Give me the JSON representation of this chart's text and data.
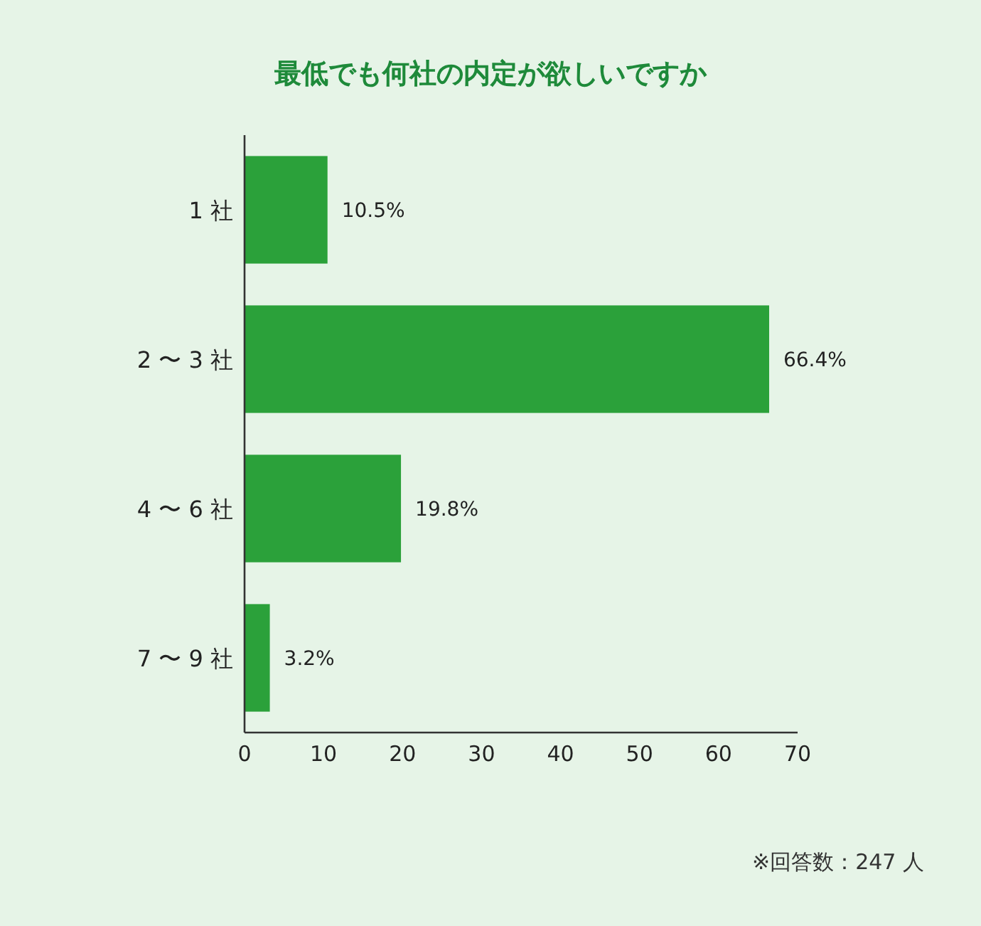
{
  "chart_data": {
    "type": "bar",
    "orientation": "horizontal",
    "title": "最低でも何社の内定が欲しいですか",
    "categories": [
      "1 社",
      "2 〜 3 社",
      "4 〜 6 社",
      "7 〜 9 社"
    ],
    "values": [
      10.5,
      66.4,
      19.8,
      3.2
    ],
    "value_labels": [
      "10.5%",
      "66.4%",
      "19.8%",
      "3.2%"
    ],
    "color": "#2ba13a",
    "xlim": [
      0,
      70
    ],
    "xticks": [
      0,
      10,
      20,
      30,
      40,
      50,
      60,
      70
    ],
    "grid": false,
    "annotations": [
      "※回答数：247 人"
    ]
  }
}
